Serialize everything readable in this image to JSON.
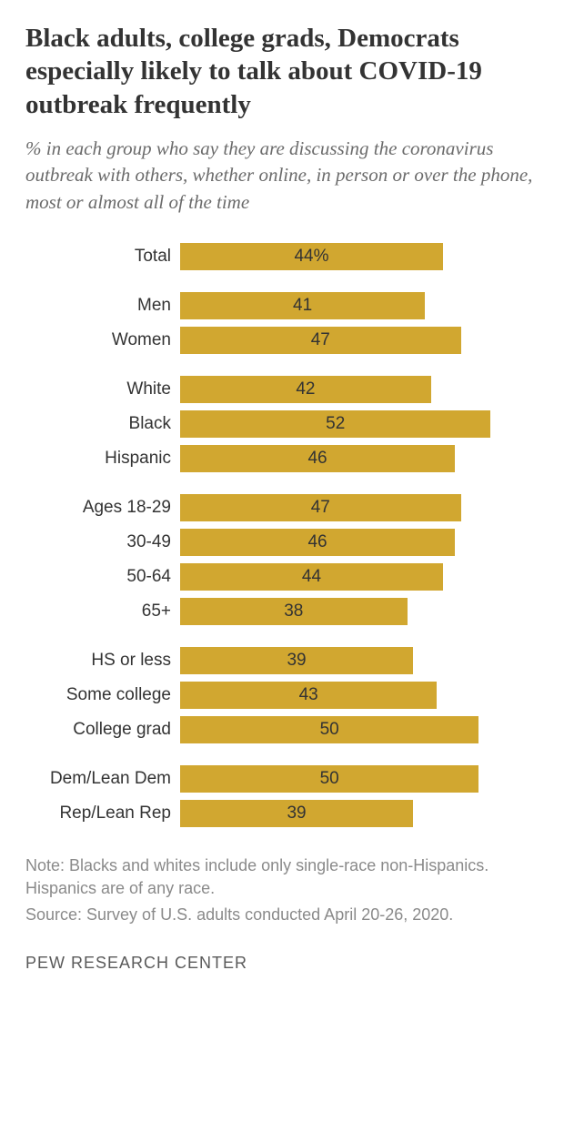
{
  "title": "Black adults, college grads, Democrats especially likely to talk about COVID-19 outbreak frequently",
  "subtitle": "% in each group who say they are discussing the coronavirus outbreak with others, whether online, in person or over the phone, most or almost all of the time",
  "bar_color": "#d1a730",
  "max_value": 60,
  "value_fontsize": 19,
  "label_fontsize": 19,
  "groups": [
    [
      {
        "label": "Total",
        "value": 44,
        "suffix": "%"
      }
    ],
    [
      {
        "label": "Men",
        "value": 41,
        "suffix": ""
      },
      {
        "label": "Women",
        "value": 47,
        "suffix": ""
      }
    ],
    [
      {
        "label": "White",
        "value": 42,
        "suffix": ""
      },
      {
        "label": "Black",
        "value": 52,
        "suffix": ""
      },
      {
        "label": "Hispanic",
        "value": 46,
        "suffix": ""
      }
    ],
    [
      {
        "label": "Ages 18-29",
        "value": 47,
        "suffix": ""
      },
      {
        "label": "30-49",
        "value": 46,
        "suffix": ""
      },
      {
        "label": "50-64",
        "value": 44,
        "suffix": ""
      },
      {
        "label": "65+",
        "value": 38,
        "suffix": ""
      }
    ],
    [
      {
        "label": "HS or less",
        "value": 39,
        "suffix": ""
      },
      {
        "label": "Some college",
        "value": 43,
        "suffix": ""
      },
      {
        "label": "College grad",
        "value": 50,
        "suffix": ""
      }
    ],
    [
      {
        "label": "Dem/Lean Dem",
        "value": 50,
        "suffix": ""
      },
      {
        "label": "Rep/Lean Rep",
        "value": 39,
        "suffix": ""
      }
    ]
  ],
  "note": "Note: Blacks and whites include only single-race non-Hispanics. Hispanics are of any race.",
  "source": "Source: Survey of U.S. adults conducted April 20-26, 2020.",
  "footer": "PEW RESEARCH CENTER"
}
